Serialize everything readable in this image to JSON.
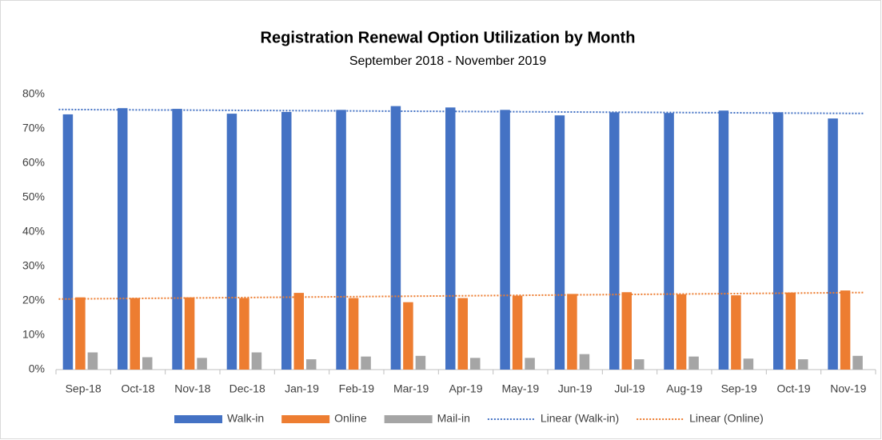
{
  "chart_data": {
    "type": "bar",
    "title": "Registration Renewal Option Utilization by Month",
    "subtitle": "September 2018 - November 2019",
    "categories": [
      "Sep-18",
      "Oct-18",
      "Nov-18",
      "Dec-18",
      "Jan-19",
      "Feb-19",
      "Mar-19",
      "Apr-19",
      "May-19",
      "Jun-19",
      "Jul-19",
      "Aug-19",
      "Sep-19",
      "Oct-19",
      "Nov-19"
    ],
    "series": [
      {
        "name": "Walk-in",
        "color": "#4472c4",
        "values": [
          74.2,
          76.0,
          75.8,
          74.4,
          74.9,
          75.5,
          76.6,
          76.2,
          75.5,
          73.9,
          74.8,
          74.6,
          75.3,
          74.8,
          73.0
        ]
      },
      {
        "name": "Online",
        "color": "#ed7d31",
        "values": [
          21.0,
          20.8,
          21.0,
          20.8,
          22.3,
          20.8,
          19.6,
          20.8,
          21.5,
          22.0,
          22.5,
          21.9,
          21.6,
          22.4,
          23.0
        ]
      },
      {
        "name": "Mail-in",
        "color": "#a5a5a5",
        "values": [
          5.0,
          3.6,
          3.4,
          5.0,
          3.0,
          3.8,
          4.0,
          3.4,
          3.4,
          4.5,
          3.0,
          3.8,
          3.2,
          3.0,
          4.0
        ]
      }
    ],
    "trendlines": [
      {
        "name": "Linear (Walk-in)",
        "series": 0,
        "color": "#4472c4"
      },
      {
        "name": "Linear (Online)",
        "series": 1,
        "color": "#ed7d31"
      }
    ],
    "ylim": [
      0,
      80
    ],
    "yticks": [
      {
        "value": 0,
        "label": "0%"
      },
      {
        "value": 10,
        "label": "10%"
      },
      {
        "value": 20,
        "label": "20%"
      },
      {
        "value": 30,
        "label": "30%"
      },
      {
        "value": 40,
        "label": "40%"
      },
      {
        "value": 50,
        "label": "50%"
      },
      {
        "value": 60,
        "label": "60%"
      },
      {
        "value": 70,
        "label": "70%"
      },
      {
        "value": 80,
        "label": "80%"
      }
    ],
    "grid": false,
    "legend": "bottom"
  }
}
